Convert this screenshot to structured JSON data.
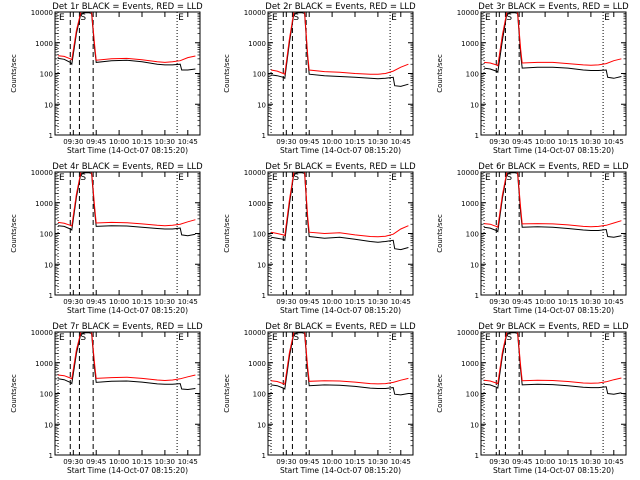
{
  "figure": {
    "title_template": "Det {n}r BLACK = Events, RED = LLD",
    "xlabel": "Start Time (14-Oct-07 08:15:20)",
    "ylabel": "Counts/sec",
    "colors": {
      "events": "#000000",
      "lld": "#ff0000",
      "axes": "#000000"
    }
  },
  "chart_data": [
    {
      "type": "line",
      "title": "Det 1r BLACK = Events, RED = LLD",
      "series": [
        {
          "name": "Events",
          "color": "#000000",
          "x": [
            "09:20",
            "09:24",
            "09:28",
            "09:29",
            "09:32",
            "09:35",
            "09:38",
            "09:40",
            "09:42",
            "09:44",
            "09:45",
            "09:55",
            "10:05",
            "10:15",
            "10:25",
            "10:30",
            "10:35",
            "10:40",
            "10:41",
            "10:45",
            "10:50"
          ],
          "values": [
            310,
            290,
            230,
            200,
            2000,
            9000,
            9500,
            9500,
            9000,
            600,
            230,
            260,
            270,
            240,
            200,
            190,
            190,
            200,
            130,
            130,
            140
          ]
        },
        {
          "name": "LLD",
          "color": "#ff0000",
          "x": [
            "09:20",
            "09:24",
            "09:28",
            "09:29",
            "09:32",
            "09:35",
            "09:38",
            "09:40",
            "09:42",
            "09:44",
            "09:45",
            "09:55",
            "10:05",
            "10:15",
            "10:25",
            "10:30",
            "10:35",
            "10:40",
            "10:45",
            "10:50"
          ],
          "values": [
            380,
            360,
            300,
            280,
            2500,
            10000,
            10000,
            10000,
            10000,
            800,
            270,
            300,
            310,
            280,
            240,
            230,
            240,
            260,
            330,
            370
          ]
        }
      ]
    },
    {
      "type": "line",
      "title": "Det 2r BLACK = Events, RED = LLD",
      "series": [
        {
          "name": "Events",
          "color": "#000000",
          "x": [
            "09:20",
            "09:24",
            "09:28",
            "09:29",
            "09:32",
            "09:35",
            "09:38",
            "09:40",
            "09:42",
            "09:44",
            "09:45",
            "09:55",
            "10:05",
            "10:15",
            "10:25",
            "10:30",
            "10:35",
            "10:40",
            "10:41",
            "10:45",
            "10:50"
          ],
          "values": [
            90,
            85,
            75,
            70,
            1000,
            9000,
            9500,
            9500,
            9000,
            300,
            95,
            85,
            80,
            75,
            70,
            68,
            70,
            75,
            40,
            38,
            45
          ]
        },
        {
          "name": "LLD",
          "color": "#ff0000",
          "x": [
            "09:20",
            "09:24",
            "09:28",
            "09:29",
            "09:32",
            "09:35",
            "09:38",
            "09:40",
            "09:42",
            "09:44",
            "09:45",
            "09:55",
            "10:05",
            "10:15",
            "10:25",
            "10:30",
            "10:35",
            "10:40",
            "10:45",
            "10:50"
          ],
          "values": [
            130,
            120,
            100,
            95,
            1300,
            10000,
            10000,
            10000,
            10000,
            400,
            130,
            115,
            110,
            100,
            95,
            95,
            100,
            120,
            160,
            200
          ]
        }
      ]
    },
    {
      "type": "line",
      "title": "Det 3r BLACK = Events, RED = LLD",
      "series": [
        {
          "name": "Events",
          "color": "#000000",
          "x": [
            "09:20",
            "09:24",
            "09:28",
            "09:29",
            "09:32",
            "09:35",
            "09:38",
            "09:40",
            "09:42",
            "09:44",
            "09:45",
            "09:55",
            "10:05",
            "10:15",
            "10:25",
            "10:30",
            "10:35",
            "10:40",
            "10:41",
            "10:45",
            "10:50"
          ],
          "values": [
            150,
            140,
            120,
            110,
            1200,
            9000,
            9500,
            9500,
            9000,
            400,
            150,
            160,
            160,
            150,
            130,
            125,
            125,
            130,
            75,
            70,
            80
          ]
        },
        {
          "name": "LLD",
          "color": "#ff0000",
          "x": [
            "09:20",
            "09:24",
            "09:28",
            "09:29",
            "09:32",
            "09:35",
            "09:38",
            "09:40",
            "09:42",
            "09:44",
            "09:45",
            "09:55",
            "10:05",
            "10:15",
            "10:25",
            "10:30",
            "10:35",
            "10:40",
            "10:45",
            "10:50"
          ],
          "values": [
            230,
            220,
            190,
            180,
            1800,
            10000,
            10000,
            10000,
            10000,
            600,
            220,
            230,
            230,
            210,
            190,
            185,
            190,
            210,
            260,
            300
          ]
        }
      ]
    },
    {
      "type": "line",
      "title": "Det 4r BLACK = Events, RED = LLD",
      "series": [
        {
          "name": "Events",
          "color": "#000000",
          "x": [
            "09:20",
            "09:24",
            "09:28",
            "09:29",
            "09:32",
            "09:35",
            "09:38",
            "09:40",
            "09:42",
            "09:44",
            "09:45",
            "09:55",
            "10:05",
            "10:15",
            "10:25",
            "10:30",
            "10:35",
            "10:40",
            "10:41",
            "10:45",
            "10:50"
          ],
          "values": [
            180,
            170,
            140,
            130,
            1500,
            9000,
            9500,
            9500,
            9000,
            500,
            170,
            180,
            175,
            160,
            145,
            140,
            140,
            150,
            90,
            85,
            95
          ]
        },
        {
          "name": "LLD",
          "color": "#ff0000",
          "x": [
            "09:20",
            "09:24",
            "09:28",
            "09:29",
            "09:32",
            "09:35",
            "09:38",
            "09:40",
            "09:42",
            "09:44",
            "09:45",
            "09:55",
            "10:05",
            "10:15",
            "10:25",
            "10:30",
            "10:35",
            "10:40",
            "10:45",
            "10:50"
          ],
          "values": [
            230,
            215,
            185,
            175,
            1900,
            10000,
            10000,
            10000,
            10000,
            700,
            220,
            230,
            225,
            205,
            185,
            180,
            185,
            200,
            240,
            280
          ]
        }
      ]
    },
    {
      "type": "line",
      "title": "Det 5r BLACK = Events, RED = LLD",
      "series": [
        {
          "name": "Events",
          "color": "#000000",
          "x": [
            "09:20",
            "09:24",
            "09:28",
            "09:29",
            "09:32",
            "09:35",
            "09:38",
            "09:40",
            "09:42",
            "09:44",
            "09:45",
            "09:55",
            "10:05",
            "10:15",
            "10:25",
            "10:30",
            "10:35",
            "10:40",
            "10:41",
            "10:45",
            "10:50"
          ],
          "values": [
            75,
            70,
            65,
            60,
            900,
            9000,
            9500,
            9500,
            9000,
            250,
            80,
            70,
            75,
            65,
            55,
            52,
            55,
            60,
            32,
            30,
            35
          ]
        },
        {
          "name": "LLD",
          "color": "#ff0000",
          "x": [
            "09:20",
            "09:24",
            "09:28",
            "09:29",
            "09:32",
            "09:35",
            "09:38",
            "09:40",
            "09:42",
            "09:44",
            "09:45",
            "09:55",
            "10:05",
            "10:15",
            "10:25",
            "10:30",
            "10:35",
            "10:40",
            "10:45",
            "10:50"
          ],
          "values": [
            110,
            100,
            90,
            85,
            1200,
            10000,
            10000,
            10000,
            10000,
            350,
            110,
            100,
            105,
            90,
            80,
            78,
            82,
            95,
            140,
            180
          ]
        }
      ]
    },
    {
      "type": "line",
      "title": "Det 6r BLACK = Events, RED = LLD",
      "series": [
        {
          "name": "Events",
          "color": "#000000",
          "x": [
            "09:20",
            "09:24",
            "09:28",
            "09:29",
            "09:32",
            "09:35",
            "09:38",
            "09:40",
            "09:42",
            "09:44",
            "09:45",
            "09:55",
            "10:05",
            "10:15",
            "10:25",
            "10:30",
            "10:35",
            "10:40",
            "10:41",
            "10:45",
            "10:50"
          ],
          "values": [
            160,
            150,
            125,
            115,
            1400,
            9000,
            9500,
            9500,
            9000,
            450,
            160,
            165,
            160,
            145,
            130,
            125,
            125,
            135,
            80,
            75,
            85
          ]
        },
        {
          "name": "LLD",
          "color": "#ff0000",
          "x": [
            "09:20",
            "09:24",
            "09:28",
            "09:29",
            "09:32",
            "09:35",
            "09:38",
            "09:40",
            "09:42",
            "09:44",
            "09:45",
            "09:55",
            "10:05",
            "10:15",
            "10:25",
            "10:30",
            "10:35",
            "10:40",
            "10:45",
            "10:50"
          ],
          "values": [
            210,
            200,
            170,
            160,
            1800,
            10000,
            10000,
            10000,
            10000,
            650,
            205,
            210,
            205,
            190,
            170,
            165,
            170,
            185,
            220,
            260
          ]
        }
      ]
    },
    {
      "type": "line",
      "title": "Det 7r BLACK = Events, RED = LLD",
      "series": [
        {
          "name": "Events",
          "color": "#000000",
          "x": [
            "09:20",
            "09:24",
            "09:28",
            "09:29",
            "09:32",
            "09:35",
            "09:38",
            "09:40",
            "09:42",
            "09:44",
            "09:45",
            "09:55",
            "10:05",
            "10:15",
            "10:25",
            "10:30",
            "10:35",
            "10:40",
            "10:41",
            "10:45",
            "10:50"
          ],
          "values": [
            300,
            280,
            230,
            210,
            2000,
            9000,
            9500,
            9500,
            9000,
            600,
            230,
            250,
            255,
            235,
            205,
            200,
            200,
            210,
            140,
            135,
            145
          ]
        },
        {
          "name": "LLD",
          "color": "#ff0000",
          "x": [
            "09:20",
            "09:24",
            "09:28",
            "09:29",
            "09:32",
            "09:35",
            "09:38",
            "09:40",
            "09:42",
            "09:44",
            "09:45",
            "09:55",
            "10:05",
            "10:15",
            "10:25",
            "10:30",
            "10:35",
            "10:40",
            "10:45",
            "10:50"
          ],
          "values": [
            400,
            380,
            320,
            300,
            2600,
            10000,
            10000,
            10000,
            10000,
            850,
            310,
            330,
            340,
            310,
            275,
            265,
            275,
            300,
            350,
            400
          ]
        }
      ]
    },
    {
      "type": "line",
      "title": "Det 8r BLACK = Events, RED = LLD",
      "series": [
        {
          "name": "Events",
          "color": "#000000",
          "x": [
            "09:20",
            "09:24",
            "09:28",
            "09:29",
            "09:32",
            "09:35",
            "09:38",
            "09:40",
            "09:42",
            "09:44",
            "09:45",
            "09:55",
            "10:05",
            "10:15",
            "10:25",
            "10:30",
            "10:35",
            "10:40",
            "10:41",
            "10:45",
            "10:50"
          ],
          "values": [
            190,
            180,
            150,
            140,
            1600,
            9000,
            9500,
            9500,
            9000,
            500,
            180,
            190,
            185,
            170,
            150,
            145,
            145,
            155,
            95,
            90,
            100
          ]
        },
        {
          "name": "LLD",
          "color": "#ff0000",
          "x": [
            "09:20",
            "09:24",
            "09:28",
            "09:29",
            "09:32",
            "09:35",
            "09:38",
            "09:40",
            "09:42",
            "09:44",
            "09:45",
            "09:55",
            "10:05",
            "10:15",
            "10:25",
            "10:30",
            "10:35",
            "10:40",
            "10:45",
            "10:50"
          ],
          "values": [
            260,
            245,
            210,
            200,
            2100,
            10000,
            10000,
            10000,
            10000,
            700,
            250,
            260,
            255,
            235,
            210,
            205,
            210,
            230,
            270,
            310
          ]
        }
      ]
    },
    {
      "type": "line",
      "title": "Det 9r BLACK = Events, RED = LLD",
      "series": [
        {
          "name": "Events",
          "color": "#000000",
          "x": [
            "09:20",
            "09:24",
            "09:28",
            "09:29",
            "09:32",
            "09:35",
            "09:38",
            "09:40",
            "09:42",
            "09:44",
            "09:45",
            "09:55",
            "10:05",
            "10:15",
            "10:25",
            "10:30",
            "10:35",
            "10:40",
            "10:41",
            "10:45",
            "10:50"
          ],
          "values": [
            200,
            190,
            160,
            150,
            1700,
            9000,
            9500,
            9500,
            9000,
            550,
            190,
            200,
            195,
            180,
            160,
            155,
            155,
            165,
            100,
            95,
            105
          ]
        },
        {
          "name": "LLD",
          "color": "#ff0000",
          "x": [
            "09:20",
            "09:24",
            "09:28",
            "09:29",
            "09:32",
            "09:35",
            "09:38",
            "09:40",
            "09:42",
            "09:44",
            "09:45",
            "09:55",
            "10:05",
            "10:15",
            "10:25",
            "10:30",
            "10:35",
            "10:40",
            "10:45",
            "10:50"
          ],
          "values": [
            270,
            255,
            220,
            210,
            2200,
            10000,
            10000,
            10000,
            10000,
            750,
            260,
            270,
            265,
            245,
            220,
            215,
            220,
            240,
            280,
            320
          ]
        }
      ]
    }
  ],
  "axes": {
    "xlim": [
      "09:18",
      "10:53"
    ],
    "xticks": [
      "09:30",
      "09:45",
      "10:00",
      "10:15",
      "10:30",
      "10:45"
    ],
    "yscale": "log",
    "ylim": [
      1,
      10000
    ],
    "yticks": [
      1,
      10,
      100,
      1000,
      10000
    ],
    "ytick_labels": [
      "1",
      "10",
      "100",
      "1000",
      "10000"
    ]
  },
  "markers": [
    {
      "label": "",
      "time": "09:28",
      "style": "dashed"
    },
    {
      "label": "S",
      "time": "09:34",
      "style": "dashed"
    },
    {
      "label": "",
      "time": "09:43",
      "style": "dashed"
    },
    {
      "label": "E",
      "time": "09:20",
      "style": "dotted"
    },
    {
      "label": "E",
      "time": "10:38",
      "style": "dotted"
    }
  ]
}
